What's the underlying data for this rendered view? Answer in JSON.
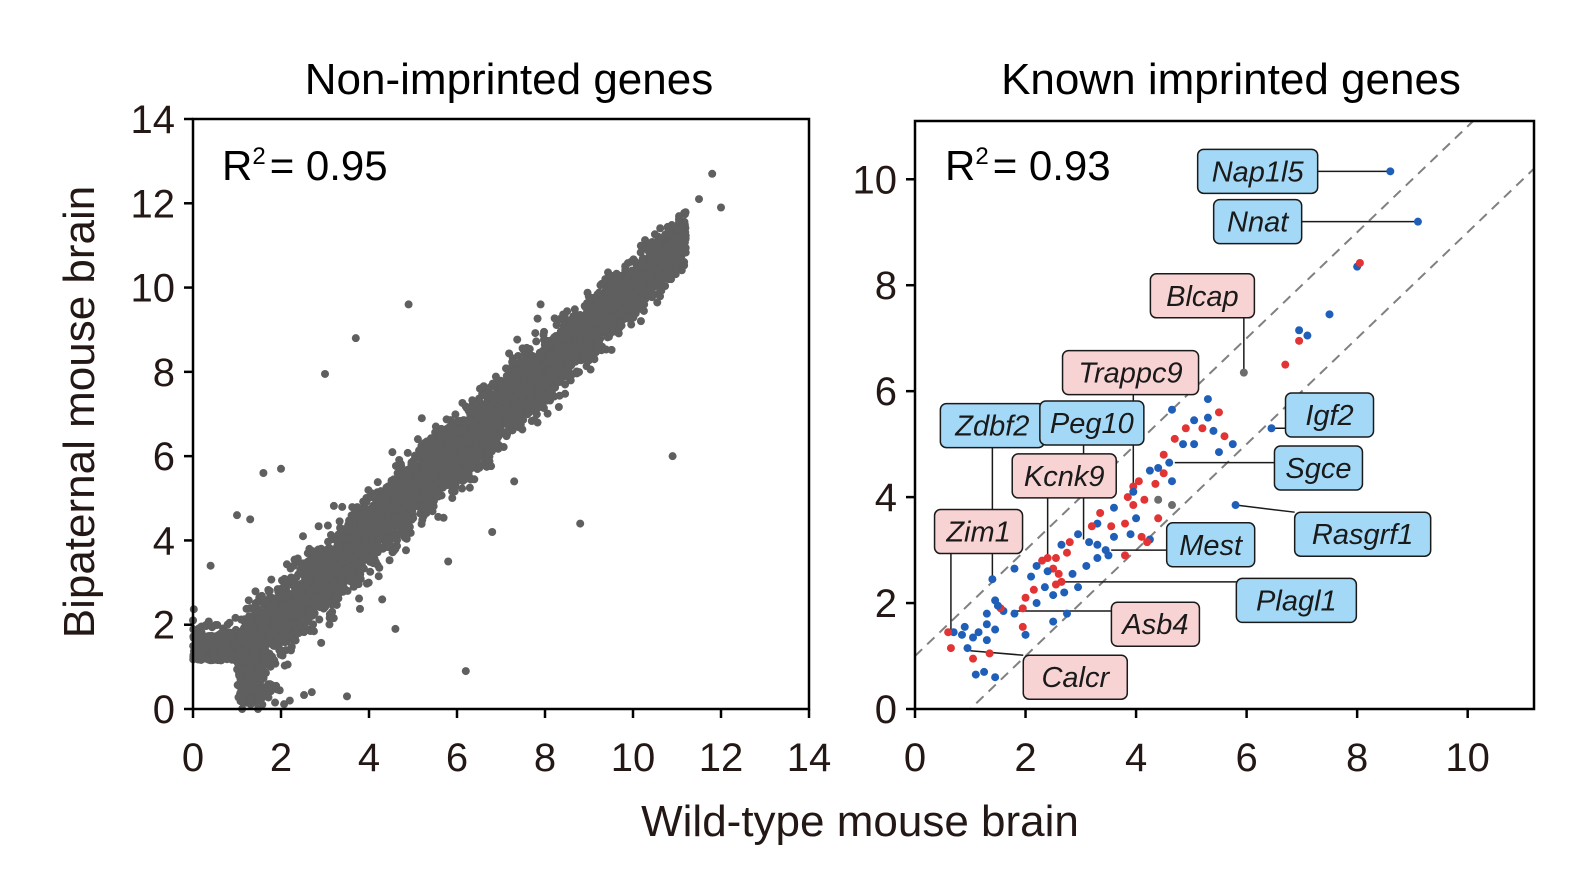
{
  "x_axis_label": "Wild-type mouse brain",
  "y_axis_label": "Bipaternal mouse brain",
  "chart_data": [
    {
      "type": "scatter",
      "title": "Non-imprinted genes",
      "annotation": {
        "r2_prefix": "R",
        "r2_sup": "2",
        "r2_value": "= 0.95"
      },
      "xlim": [
        0,
        14
      ],
      "ylim": [
        0,
        14
      ],
      "xticks": [
        "0",
        "2",
        "4",
        "6",
        "8",
        "10",
        "12",
        "14"
      ],
      "yticks": [
        "0",
        "2",
        "4",
        "6",
        "8",
        "10",
        "12",
        "14"
      ],
      "point_color": "#5f5f5f",
      "bulk_trend": {
        "slope": 0.98,
        "intercept": 0.2,
        "n_points": 5000,
        "spread": 0.45,
        "x_range": [
          1.0,
          11.2
        ]
      },
      "floor_band": {
        "y": 1.15,
        "x_range": [
          0.0,
          1.6
        ]
      },
      "outliers": [
        [
          11.8,
          12.7
        ],
        [
          12.0,
          11.9
        ],
        [
          11.5,
          12.1
        ],
        [
          10.9,
          6.0
        ],
        [
          6.2,
          0.9
        ],
        [
          3.0,
          7.95
        ],
        [
          7.9,
          9.6
        ],
        [
          8.2,
          8.7
        ],
        [
          9.0,
          8.7
        ],
        [
          3.7,
          8.8
        ],
        [
          1.6,
          5.6
        ],
        [
          2.0,
          5.7
        ],
        [
          1.0,
          4.6
        ],
        [
          1.3,
          4.5
        ],
        [
          4.9,
          9.6
        ],
        [
          2.5,
          4.1
        ],
        [
          6.5,
          7.3
        ],
        [
          7.5,
          7.4
        ],
        [
          5.8,
          3.5
        ],
        [
          6.8,
          4.2
        ],
        [
          4.3,
          2.6
        ],
        [
          2.7,
          0.4
        ],
        [
          3.5,
          0.3
        ],
        [
          2.2,
          0.2
        ],
        [
          8.8,
          4.4
        ],
        [
          0.4,
          3.4
        ],
        [
          1.1,
          0.3
        ],
        [
          5.2,
          6.9
        ],
        [
          4.6,
          1.9
        ],
        [
          7.3,
          5.4
        ]
      ]
    },
    {
      "type": "scatter",
      "title": "Known imprinted genes",
      "annotation": {
        "r2_prefix": "R",
        "r2_sup": "2",
        "r2_value": "= 0.93"
      },
      "xlim": [
        0,
        11.2
      ],
      "ylim": [
        0,
        11.1
      ],
      "xticks": [
        "0",
        "2",
        "4",
        "6",
        "8",
        "10"
      ],
      "yticks": [
        "0",
        "2",
        "4",
        "6",
        "8",
        "10"
      ],
      "reference_lines": [
        {
          "style": "dashed",
          "slope": 1,
          "intercept": 1
        },
        {
          "style": "dashed",
          "slope": 1,
          "intercept": -1
        }
      ],
      "colors": {
        "blue": "#1f5fb8",
        "red": "#e23434",
        "gray": "#6d6d6d",
        "label_blue_fill": "#a3d9f7",
        "label_red_fill": "#f8d3d3"
      },
      "points": [
        {
          "x": 8.6,
          "y": 10.15,
          "c": "blue"
        },
        {
          "x": 9.1,
          "y": 9.2,
          "c": "blue"
        },
        {
          "x": 8.0,
          "y": 8.35,
          "c": "blue"
        },
        {
          "x": 8.05,
          "y": 8.42,
          "c": "red"
        },
        {
          "x": 7.5,
          "y": 7.45,
          "c": "blue"
        },
        {
          "x": 6.95,
          "y": 7.15,
          "c": "blue"
        },
        {
          "x": 7.1,
          "y": 7.05,
          "c": "blue"
        },
        {
          "x": 6.95,
          "y": 6.95,
          "c": "red"
        },
        {
          "x": 6.7,
          "y": 6.5,
          "c": "red"
        },
        {
          "x": 5.95,
          "y": 6.35,
          "c": "gray"
        },
        {
          "x": 6.45,
          "y": 5.3,
          "c": "blue"
        },
        {
          "x": 5.75,
          "y": 5.0,
          "c": "blue"
        },
        {
          "x": 5.8,
          "y": 3.85,
          "c": "blue"
        },
        {
          "x": 5.3,
          "y": 5.85,
          "c": "blue"
        },
        {
          "x": 5.5,
          "y": 5.6,
          "c": "red"
        },
        {
          "x": 5.3,
          "y": 5.5,
          "c": "blue"
        },
        {
          "x": 5.2,
          "y": 5.3,
          "c": "red"
        },
        {
          "x": 5.4,
          "y": 5.25,
          "c": "blue"
        },
        {
          "x": 5.05,
          "y": 5.45,
          "c": "blue"
        },
        {
          "x": 5.6,
          "y": 5.15,
          "c": "red"
        },
        {
          "x": 4.9,
          "y": 5.3,
          "c": "red"
        },
        {
          "x": 5.5,
          "y": 4.85,
          "c": "blue"
        },
        {
          "x": 5.05,
          "y": 5.0,
          "c": "blue"
        },
        {
          "x": 4.85,
          "y": 5.0,
          "c": "blue"
        },
        {
          "x": 4.65,
          "y": 5.65,
          "c": "blue"
        },
        {
          "x": 4.7,
          "y": 5.1,
          "c": "red"
        },
        {
          "x": 4.5,
          "y": 4.8,
          "c": "red"
        },
        {
          "x": 4.6,
          "y": 4.65,
          "c": "blue"
        },
        {
          "x": 4.65,
          "y": 4.3,
          "c": "blue"
        },
        {
          "x": 4.4,
          "y": 4.55,
          "c": "blue"
        },
        {
          "x": 4.25,
          "y": 4.5,
          "c": "blue"
        },
        {
          "x": 4.5,
          "y": 4.45,
          "c": "red"
        },
        {
          "x": 4.35,
          "y": 4.25,
          "c": "red"
        },
        {
          "x": 4.4,
          "y": 3.95,
          "c": "gray"
        },
        {
          "x": 4.65,
          "y": 3.85,
          "c": "gray"
        },
        {
          "x": 4.4,
          "y": 3.6,
          "c": "red"
        },
        {
          "x": 4.25,
          "y": 3.2,
          "c": "blue"
        },
        {
          "x": 4.05,
          "y": 4.3,
          "c": "red"
        },
        {
          "x": 3.95,
          "y": 4.2,
          "c": "red"
        },
        {
          "x": 3.85,
          "y": 4.0,
          "c": "red"
        },
        {
          "x": 3.95,
          "y": 3.85,
          "c": "red"
        },
        {
          "x": 4.0,
          "y": 3.6,
          "c": "blue"
        },
        {
          "x": 3.8,
          "y": 3.5,
          "c": "red"
        },
        {
          "x": 3.9,
          "y": 3.3,
          "c": "blue"
        },
        {
          "x": 3.35,
          "y": 4.45,
          "c": "blue"
        },
        {
          "x": 3.35,
          "y": 3.7,
          "c": "red"
        },
        {
          "x": 3.6,
          "y": 3.8,
          "c": "blue"
        },
        {
          "x": 3.3,
          "y": 3.5,
          "c": "blue"
        },
        {
          "x": 3.55,
          "y": 3.45,
          "c": "red"
        },
        {
          "x": 3.2,
          "y": 3.45,
          "c": "red"
        },
        {
          "x": 3.6,
          "y": 3.25,
          "c": "blue"
        },
        {
          "x": 3.3,
          "y": 3.1,
          "c": "blue"
        },
        {
          "x": 3.15,
          "y": 3.15,
          "c": "blue"
        },
        {
          "x": 3.45,
          "y": 3.0,
          "c": "blue"
        },
        {
          "x": 3.5,
          "y": 2.9,
          "c": "blue"
        },
        {
          "x": 3.8,
          "y": 2.9,
          "c": "red"
        },
        {
          "x": 3.3,
          "y": 2.85,
          "c": "blue"
        },
        {
          "x": 3.1,
          "y": 2.7,
          "c": "blue"
        },
        {
          "x": 2.95,
          "y": 3.3,
          "c": "blue"
        },
        {
          "x": 2.8,
          "y": 3.15,
          "c": "red"
        },
        {
          "x": 2.75,
          "y": 2.95,
          "c": "red"
        },
        {
          "x": 2.65,
          "y": 3.1,
          "c": "blue"
        },
        {
          "x": 2.55,
          "y": 2.85,
          "c": "red"
        },
        {
          "x": 2.4,
          "y": 2.85,
          "c": "red"
        },
        {
          "x": 2.3,
          "y": 2.8,
          "c": "red"
        },
        {
          "x": 2.5,
          "y": 2.65,
          "c": "red"
        },
        {
          "x": 2.6,
          "y": 2.55,
          "c": "red"
        },
        {
          "x": 2.4,
          "y": 2.6,
          "c": "blue"
        },
        {
          "x": 2.2,
          "y": 2.7,
          "c": "blue"
        },
        {
          "x": 2.65,
          "y": 2.4,
          "c": "red"
        },
        {
          "x": 2.85,
          "y": 2.55,
          "c": "blue"
        },
        {
          "x": 2.95,
          "y": 2.3,
          "c": "blue"
        },
        {
          "x": 2.7,
          "y": 2.2,
          "c": "blue"
        },
        {
          "x": 2.5,
          "y": 2.15,
          "c": "blue"
        },
        {
          "x": 2.35,
          "y": 2.3,
          "c": "blue"
        },
        {
          "x": 2.1,
          "y": 2.5,
          "c": "blue"
        },
        {
          "x": 2.15,
          "y": 2.25,
          "c": "red"
        },
        {
          "x": 2.0,
          "y": 2.1,
          "c": "red"
        },
        {
          "x": 2.2,
          "y": 2.0,
          "c": "blue"
        },
        {
          "x": 1.8,
          "y": 2.65,
          "c": "blue"
        },
        {
          "x": 1.95,
          "y": 1.9,
          "c": "red"
        },
        {
          "x": 1.8,
          "y": 1.8,
          "c": "blue"
        },
        {
          "x": 1.6,
          "y": 1.85,
          "c": "blue"
        },
        {
          "x": 1.55,
          "y": 1.9,
          "c": "red"
        },
        {
          "x": 1.5,
          "y": 1.95,
          "c": "blue"
        },
        {
          "x": 1.45,
          "y": 2.05,
          "c": "blue"
        },
        {
          "x": 1.4,
          "y": 2.45,
          "c": "blue"
        },
        {
          "x": 2.75,
          "y": 1.8,
          "c": "blue"
        },
        {
          "x": 2.5,
          "y": 1.65,
          "c": "blue"
        },
        {
          "x": 1.95,
          "y": 1.55,
          "c": "red"
        },
        {
          "x": 2.0,
          "y": 1.4,
          "c": "blue"
        },
        {
          "x": 1.45,
          "y": 1.5,
          "c": "blue"
        },
        {
          "x": 1.3,
          "y": 1.6,
          "c": "blue"
        },
        {
          "x": 1.3,
          "y": 1.3,
          "c": "blue"
        },
        {
          "x": 1.15,
          "y": 1.45,
          "c": "blue"
        },
        {
          "x": 1.05,
          "y": 1.35,
          "c": "blue"
        },
        {
          "x": 0.9,
          "y": 1.55,
          "c": "blue"
        },
        {
          "x": 0.85,
          "y": 1.4,
          "c": "blue"
        },
        {
          "x": 0.7,
          "y": 1.45,
          "c": "blue"
        },
        {
          "x": 0.6,
          "y": 1.45,
          "c": "red"
        },
        {
          "x": 0.65,
          "y": 1.15,
          "c": "red"
        },
        {
          "x": 0.95,
          "y": 1.15,
          "c": "blue"
        },
        {
          "x": 1.05,
          "y": 0.95,
          "c": "red"
        },
        {
          "x": 1.35,
          "y": 1.05,
          "c": "red"
        },
        {
          "x": 1.1,
          "y": 0.65,
          "c": "blue"
        },
        {
          "x": 1.25,
          "y": 0.7,
          "c": "blue"
        },
        {
          "x": 1.45,
          "y": 0.6,
          "c": "blue"
        },
        {
          "x": 1.3,
          "y": 1.8,
          "c": "blue"
        },
        {
          "x": 4.15,
          "y": 3.95,
          "c": "red"
        },
        {
          "x": 4.1,
          "y": 3.25,
          "c": "red"
        },
        {
          "x": 3.95,
          "y": 4.1,
          "c": "blue"
        },
        {
          "x": 2.55,
          "y": 2.35,
          "c": "red"
        },
        {
          "x": 3.25,
          "y": 4.1,
          "c": "blue"
        },
        {
          "x": 4.2,
          "y": 3.15,
          "c": "red"
        }
      ],
      "gene_labels": [
        {
          "name": "Nap1l5",
          "color": "blue",
          "tx": 6.2,
          "ty": 10.15,
          "ax": 8.55,
          "ay": 10.15
        },
        {
          "name": "Nnat",
          "color": "blue",
          "tx": 6.2,
          "ty": 9.2,
          "ax": 9.05,
          "ay": 9.2
        },
        {
          "name": "Blcap",
          "color": "red",
          "tx": 5.2,
          "ty": 7.8,
          "ax": 5.95,
          "ay": 6.4
        },
        {
          "name": "Trappc9",
          "color": "red",
          "tx": 3.9,
          "ty": 6.35,
          "ax": 3.95,
          "ay": 4.25
        },
        {
          "name": "Igf2",
          "color": "blue",
          "tx": 7.5,
          "ty": 5.55,
          "ax": 6.45,
          "ay": 5.3
        },
        {
          "name": "Sgce",
          "color": "blue",
          "tx": 7.3,
          "ty": 4.55,
          "ax": 4.7,
          "ay": 4.65
        },
        {
          "name": "Zdbf2",
          "color": "blue",
          "tx": 1.4,
          "ty": 5.35,
          "ax": 1.4,
          "ay": 2.5
        },
        {
          "name": "Peg10",
          "color": "blue",
          "tx": 3.2,
          "ty": 5.4,
          "ax": 3.05,
          "ay": 3.2
        },
        {
          "name": "Kcnk9",
          "color": "red",
          "tx": 2.7,
          "ty": 4.4,
          "ax": 2.4,
          "ay": 2.8
        },
        {
          "name": "Rasgrf1",
          "color": "blue",
          "tx": 8.1,
          "ty": 3.3,
          "ax": 5.8,
          "ay": 3.85
        },
        {
          "name": "Zim1",
          "color": "red",
          "tx": 1.15,
          "ty": 3.35,
          "ax": 0.65,
          "ay": 1.45
        },
        {
          "name": "Mest",
          "color": "blue",
          "tx": 5.35,
          "ty": 3.1,
          "ax": 3.55,
          "ay": 3.0
        },
        {
          "name": "Plagl1",
          "color": "blue",
          "tx": 6.9,
          "ty": 2.05,
          "ax": 2.6,
          "ay": 2.4
        },
        {
          "name": "Asb4",
          "color": "red",
          "tx": 4.35,
          "ty": 1.6,
          "ax": 1.75,
          "ay": 1.85
        },
        {
          "name": "Calcr",
          "color": "red",
          "tx": 2.9,
          "ty": 0.6,
          "ax": 1.0,
          "ay": 1.1
        }
      ]
    }
  ]
}
